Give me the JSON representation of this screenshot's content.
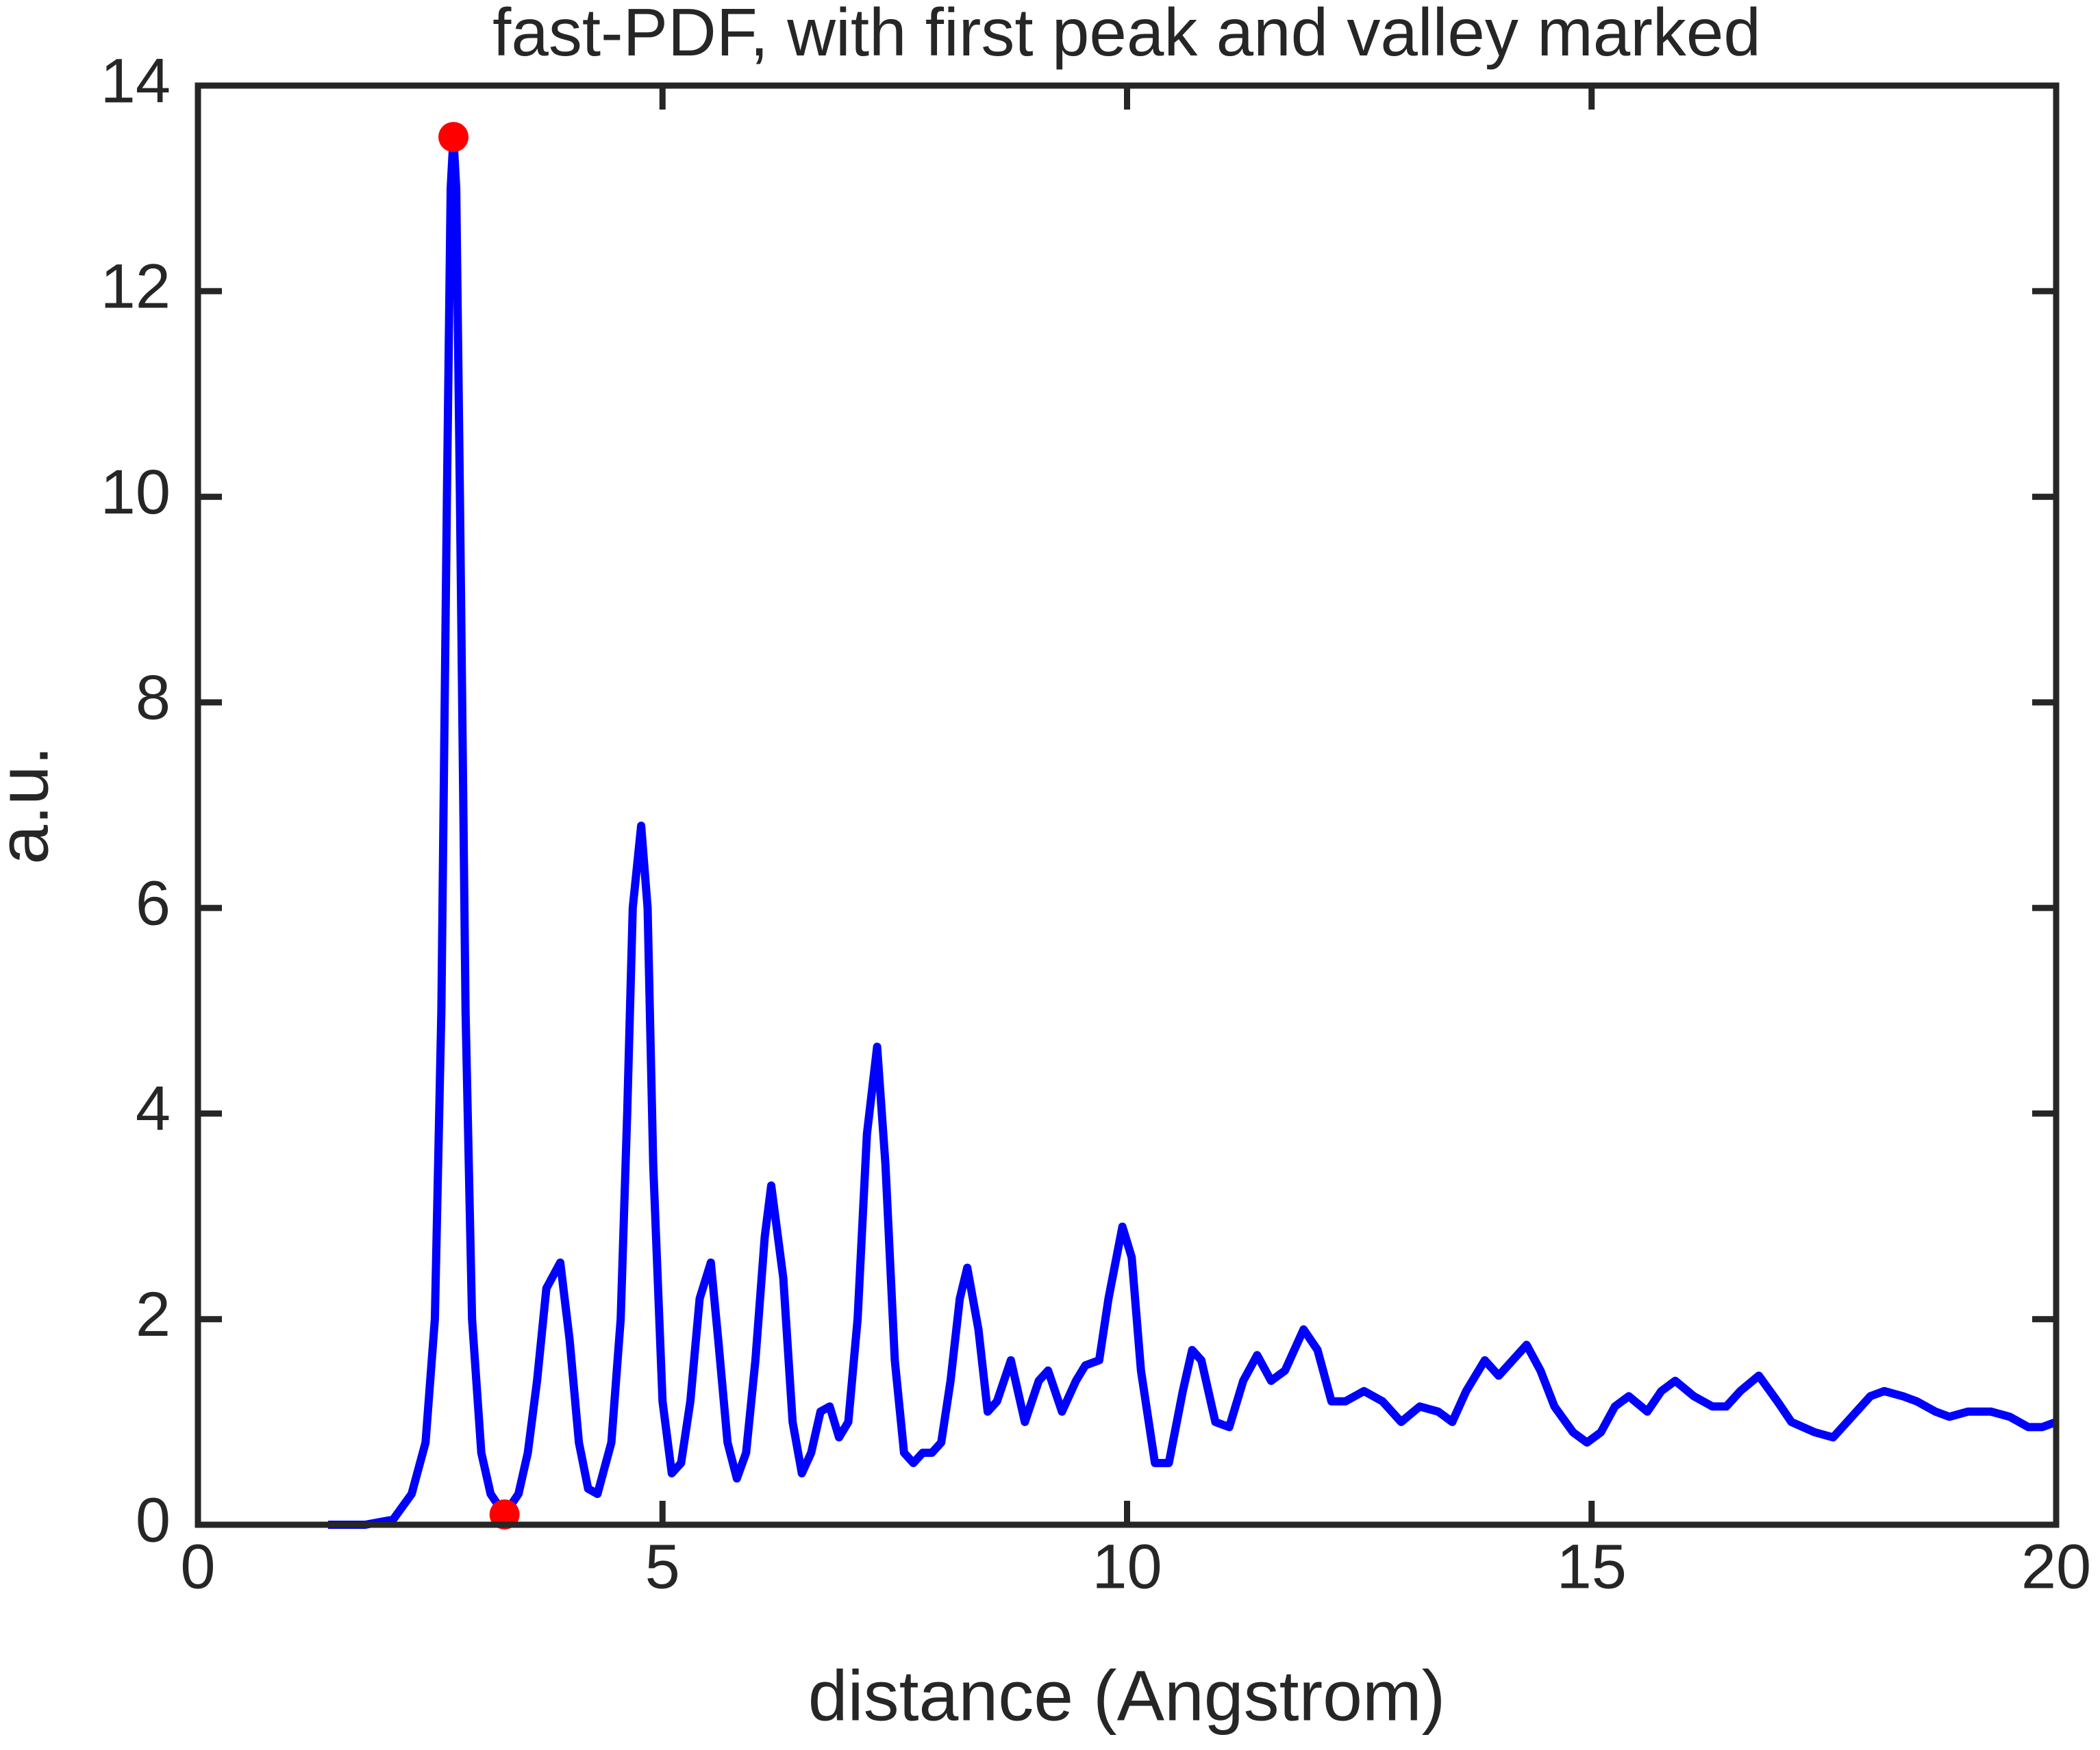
{
  "chart_data": {
    "type": "line",
    "title": "fast-PDF, with first peak and valley marked",
    "xlabel": "distance (Angstrom)",
    "ylabel": "a.u.",
    "xlim": [
      0,
      20
    ],
    "xticks": [
      0,
      5,
      10,
      15,
      20
    ],
    "ylim": [
      0,
      14
    ],
    "yticks": [
      0,
      2,
      4,
      6,
      8,
      10,
      12,
      14
    ],
    "grid": false,
    "series": [
      {
        "color": "#0000ff",
        "x": [
          1.4,
          1.8,
          2.1,
          2.3,
          2.45,
          2.55,
          2.62,
          2.68,
          2.72,
          2.75,
          2.78,
          2.82,
          2.88,
          2.95,
          3.05,
          3.15,
          3.3,
          3.45,
          3.55,
          3.65,
          3.75,
          3.9,
          4.0,
          4.1,
          4.2,
          4.3,
          4.45,
          4.55,
          4.62,
          4.68,
          4.77,
          4.84,
          4.9,
          5.0,
          5.1,
          5.2,
          5.3,
          5.4,
          5.52,
          5.6,
          5.7,
          5.8,
          5.9,
          6.0,
          6.1,
          6.17,
          6.3,
          6.4,
          6.5,
          6.6,
          6.7,
          6.8,
          6.9,
          7.0,
          7.1,
          7.2,
          7.31,
          7.4,
          7.5,
          7.6,
          7.7,
          7.8,
          7.9,
          8.0,
          8.1,
          8.2,
          8.28,
          8.4,
          8.5,
          8.6,
          8.75,
          8.9,
          9.05,
          9.15,
          9.3,
          9.45,
          9.55,
          9.7,
          9.8,
          9.95,
          10.05,
          10.15,
          10.3,
          10.45,
          10.6,
          10.7,
          10.8,
          10.95,
          11.1,
          11.25,
          11.4,
          11.55,
          11.7,
          11.9,
          12.05,
          12.2,
          12.35,
          12.55,
          12.75,
          12.95,
          13.15,
          13.35,
          13.5,
          13.65,
          13.85,
          14.0,
          14.15,
          14.3,
          14.45,
          14.6,
          14.8,
          14.95,
          15.1,
          15.25,
          15.4,
          15.6,
          15.75,
          15.9,
          16.1,
          16.3,
          16.45,
          16.6,
          16.8,
          17.0,
          17.15,
          17.4,
          17.6,
          17.8,
          18.0,
          18.15,
          18.35,
          18.5,
          18.7,
          18.85,
          19.05,
          19.3,
          19.5,
          19.7,
          19.85,
          20.0
        ],
        "values": [
          0,
          0,
          0.05,
          0.3,
          0.8,
          2,
          5,
          10,
          13,
          13.5,
          13,
          10,
          5,
          2,
          0.7,
          0.3,
          0.1,
          0.3,
          0.7,
          1.4,
          2.3,
          2.55,
          1.8,
          0.8,
          0.35,
          0.3,
          0.8,
          2,
          4,
          6,
          6.8,
          6,
          3.5,
          1.2,
          0.5,
          0.6,
          1.2,
          2.2,
          2.55,
          1.8,
          0.8,
          0.45,
          0.7,
          1.6,
          2.8,
          3.3,
          2.4,
          1.0,
          0.5,
          0.7,
          1.1,
          1.15,
          0.85,
          1.0,
          2.0,
          3.8,
          4.65,
          3.5,
          1.6,
          0.7,
          0.6,
          0.7,
          0.7,
          0.8,
          1.4,
          2.2,
          2.5,
          1.9,
          1.1,
          1.2,
          1.6,
          1.0,
          1.4,
          1.5,
          1.1,
          1.4,
          1.55,
          1.6,
          2.2,
          2.9,
          2.6,
          1.5,
          0.6,
          0.6,
          1.3,
          1.7,
          1.6,
          1.0,
          0.95,
          1.4,
          1.65,
          1.4,
          1.5,
          1.9,
          1.7,
          1.2,
          1.2,
          1.3,
          1.2,
          1.0,
          1.15,
          1.1,
          1.0,
          1.3,
          1.6,
          1.45,
          1.6,
          1.75,
          1.5,
          1.15,
          0.9,
          0.8,
          0.9,
          1.15,
          1.25,
          1.1,
          1.3,
          1.4,
          1.25,
          1.15,
          1.15,
          1.3,
          1.45,
          1.2,
          1.0,
          0.9,
          0.85,
          1.05,
          1.25,
          1.3,
          1.25,
          1.2,
          1.1,
          1.05,
          1.1,
          1.1,
          1.05,
          0.95,
          0.95,
          1.0
        ]
      },
      {
        "color": "#ff0000",
        "marker": "dot",
        "x": [
          2.75,
          3.3
        ],
        "values": [
          13.5,
          0.1
        ]
      }
    ]
  }
}
